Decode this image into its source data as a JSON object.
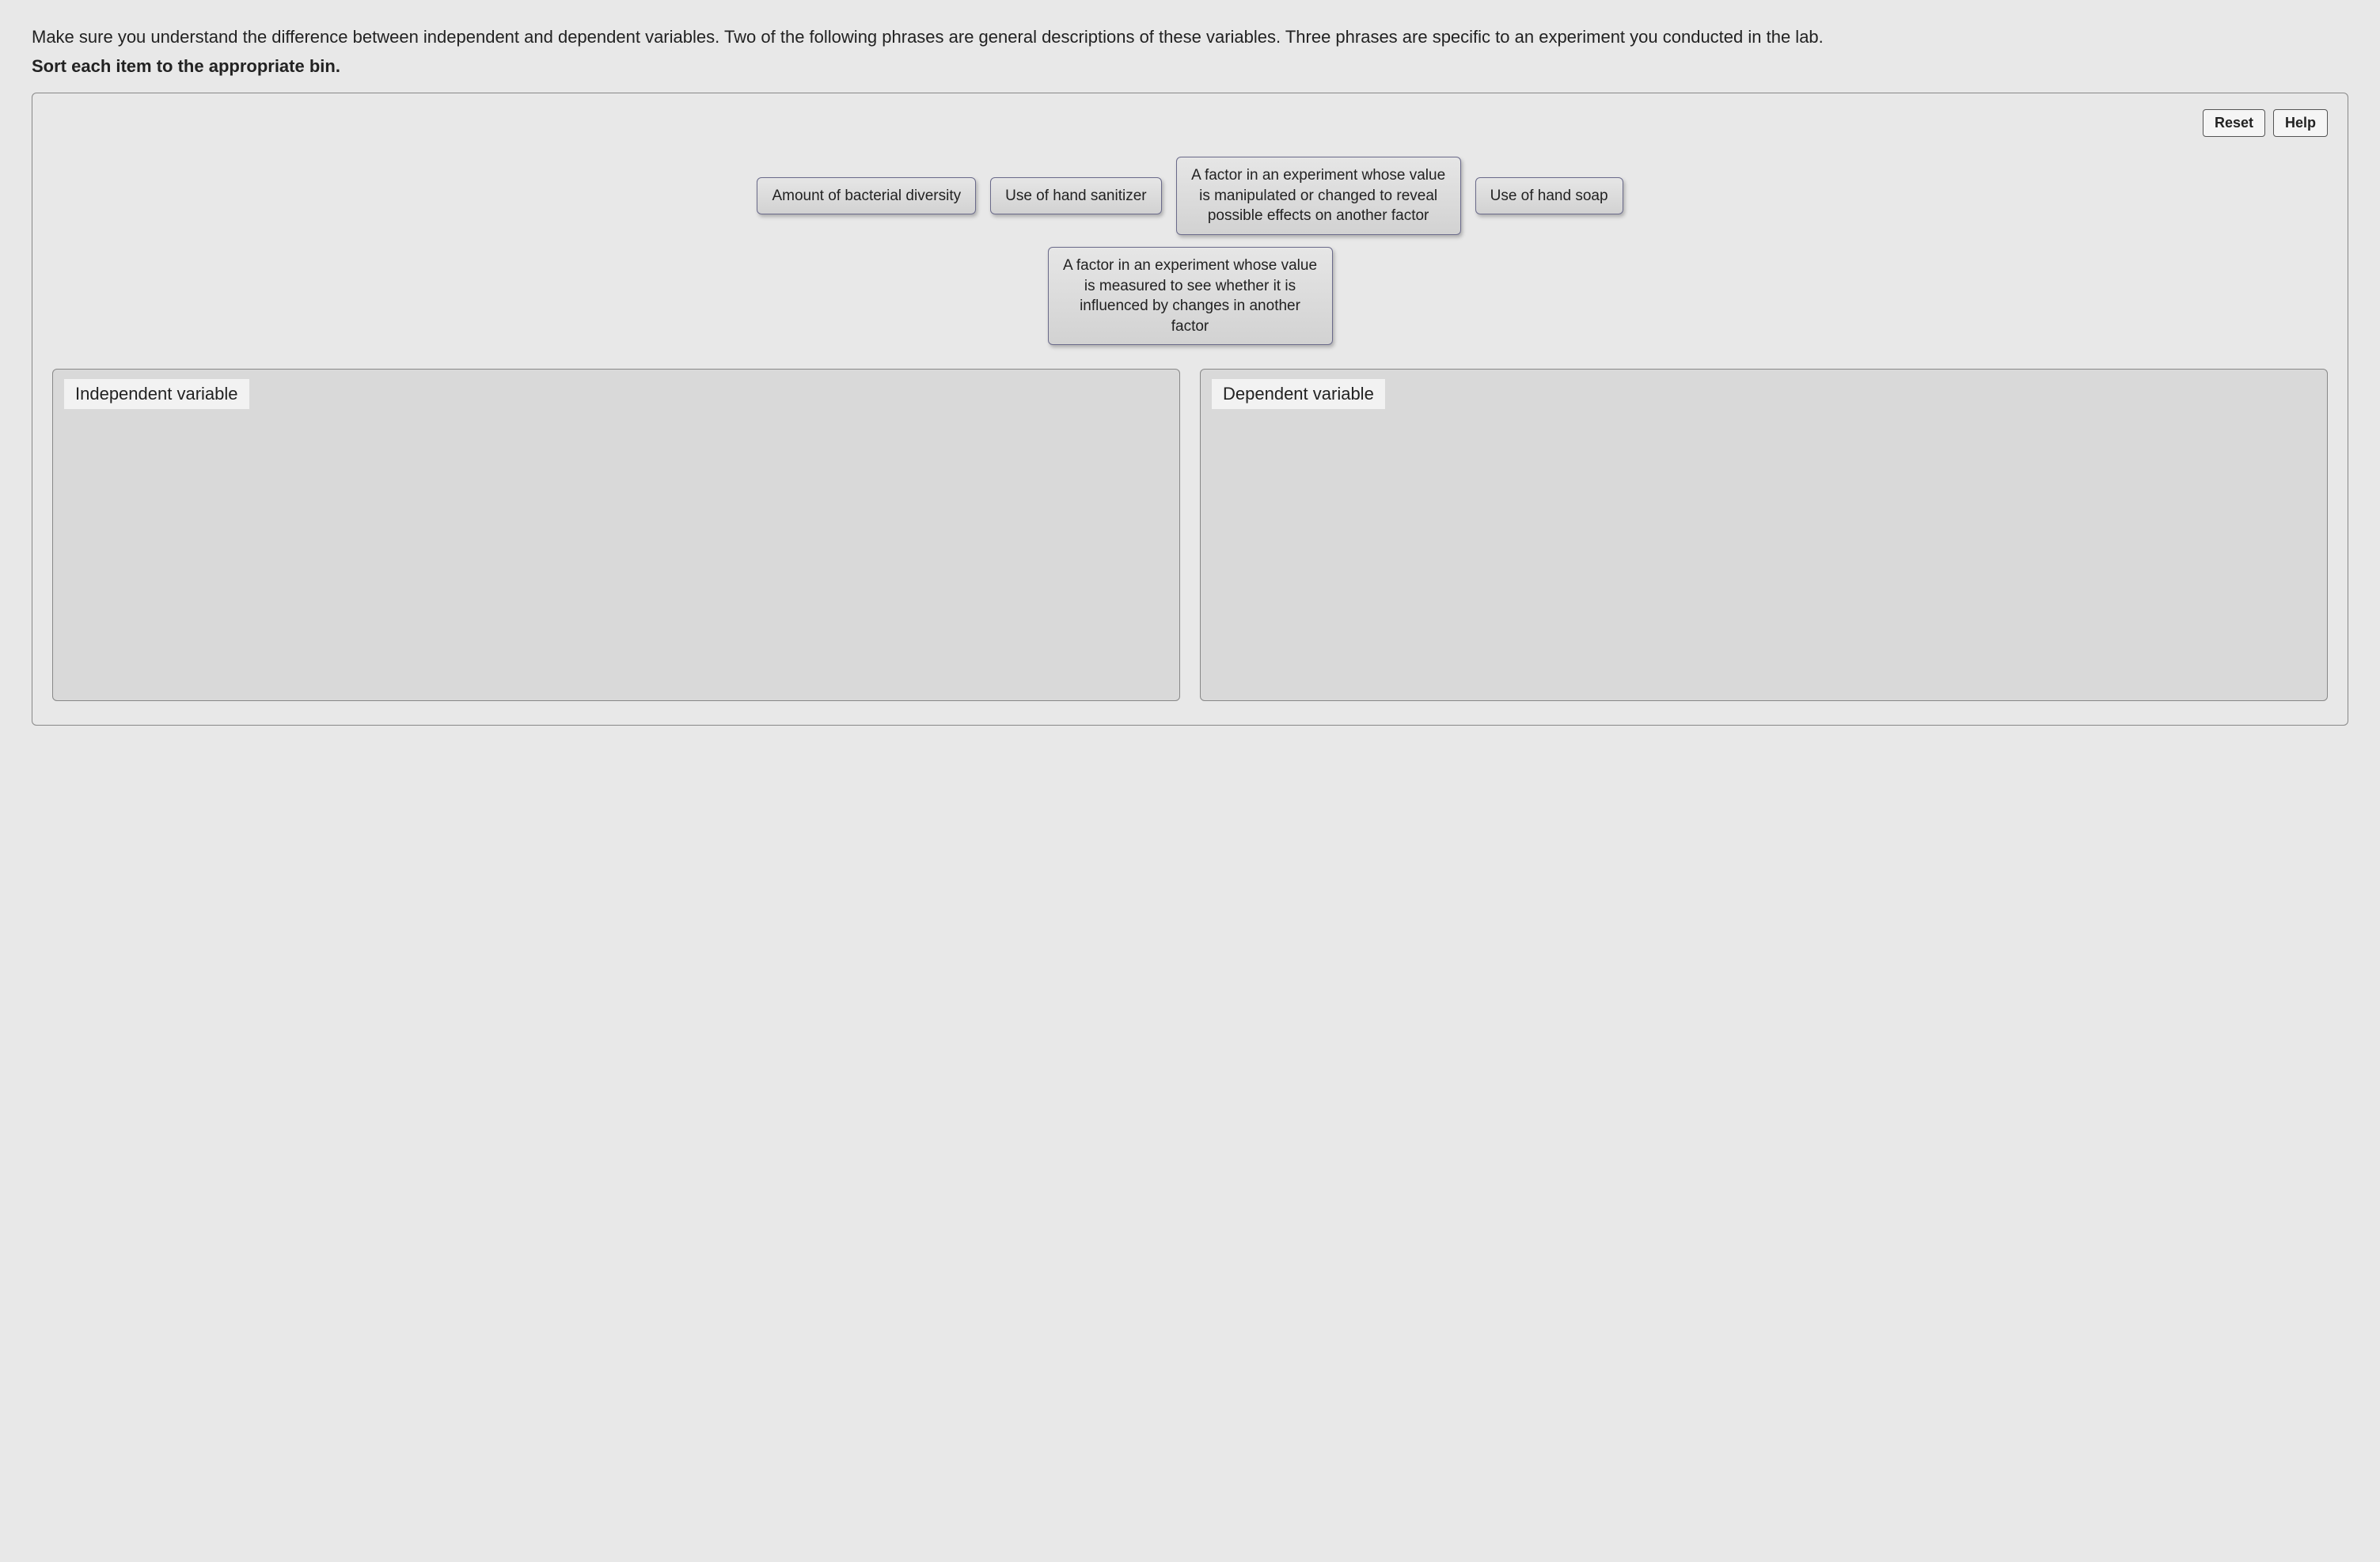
{
  "instructions": {
    "line1": "Make sure you understand the difference between independent and dependent variables. Two of the following phrases are general descriptions of these variables. Three phrases are specific to an experiment you conducted in the lab.",
    "line2_bold": "Sort each item to the appropriate bin."
  },
  "buttons": {
    "reset": "Reset",
    "help": "Help"
  },
  "items": {
    "row1": [
      "Amount of bacterial diversity",
      "Use of hand sanitizer",
      "A factor in an experiment whose value is manipulated or changed to reveal possible effects on another factor",
      "Use of hand soap"
    ],
    "row2": [
      "A factor in an experiment whose value is measured to see whether it is influenced by changes in another factor"
    ]
  },
  "bins": {
    "left": "Independent variable",
    "right": "Dependent variable"
  },
  "styling": {
    "background_color": "#e8e8e8",
    "item_bg_top": "#e6e6e6",
    "item_bg_bottom": "#d2d2d2",
    "item_border": "#6a6a8a",
    "bin_bg": "#d9d9d9",
    "bin_border": "#888888",
    "bin_label_bg": "#f2f2f2",
    "button_bg": "#f5f5f5",
    "button_border": "#555555",
    "text_color": "#222222",
    "instruction_fontsize": 22,
    "item_fontsize": 19,
    "bin_label_fontsize": 22,
    "button_fontsize": 18,
    "bin_min_height": 420
  }
}
